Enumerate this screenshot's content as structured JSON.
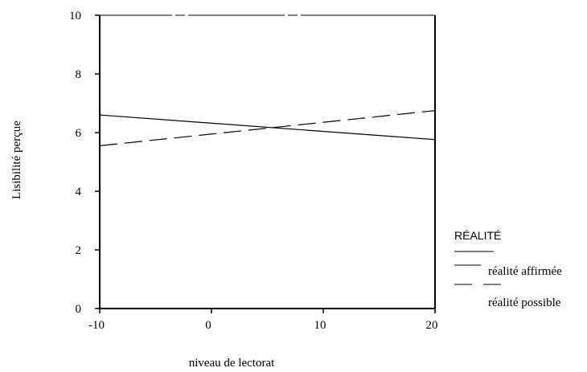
{
  "chart_data": {
    "type": "line",
    "xlabel": "niveau de lectorat",
    "ylabel": "Lisibilité perçue",
    "xlim": [
      -10,
      20
    ],
    "ylim": [
      0,
      10
    ],
    "x_ticks": [
      -10,
      0,
      10,
      20
    ],
    "y_ticks": [
      0,
      2,
      4,
      6,
      8,
      10
    ],
    "x_tick_labels": [
      "-10",
      "0",
      "10",
      "20"
    ],
    "y_tick_labels": [
      "0",
      "2",
      "4",
      "6",
      "8",
      "10"
    ],
    "grid": false,
    "legend": {
      "title": "RÉALITÉ",
      "placement": "right"
    },
    "series": [
      {
        "name": "réalité affirmée",
        "style": "solid",
        "x": [
          -10,
          20
        ],
        "y": [
          6.6,
          5.76
        ]
      },
      {
        "name": "réalité possible",
        "style": "dashed",
        "x": [
          -10,
          20
        ],
        "y": [
          5.55,
          6.75
        ]
      }
    ]
  }
}
